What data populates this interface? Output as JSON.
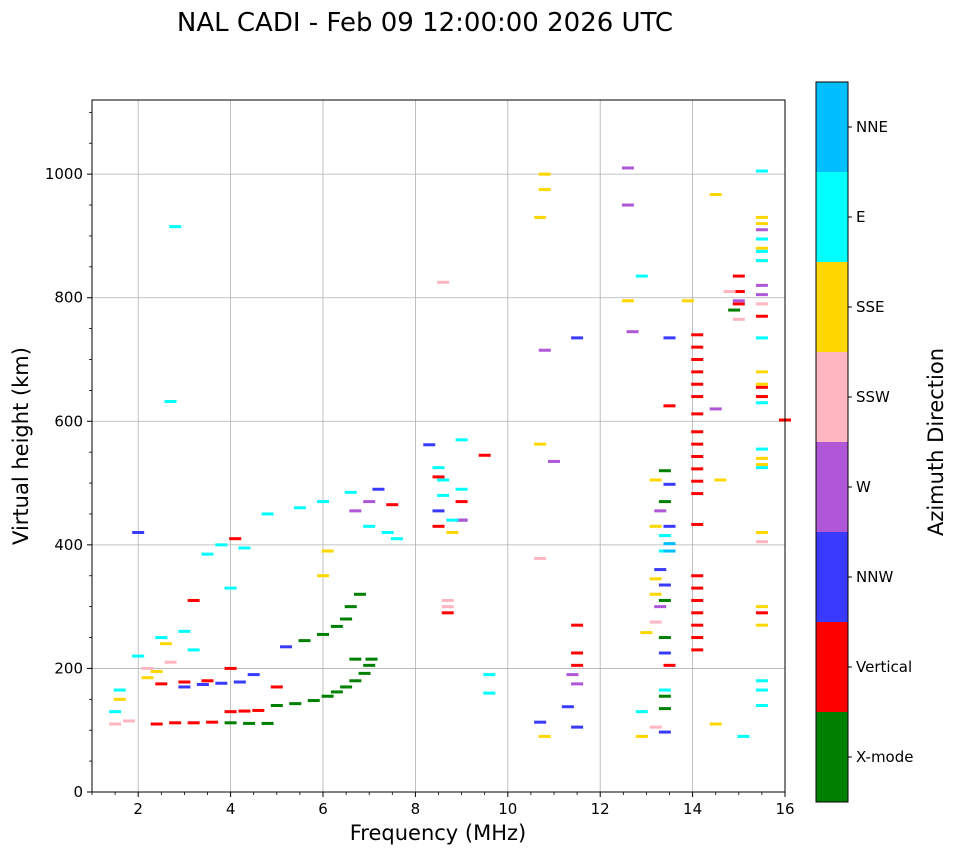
{
  "chart_data": {
    "type": "scatter",
    "title": "NAL CADI - Feb 09 12:00:00 2026 UTC",
    "xlabel": "Frequency (MHz)",
    "ylabel": "Virtual height (km)",
    "xlim": [
      1,
      16
    ],
    "ylim": [
      0,
      1120
    ],
    "x_ticks": [
      2,
      4,
      6,
      8,
      10,
      12,
      14,
      16
    ],
    "y_ticks": [
      0,
      200,
      400,
      600,
      800,
      1000
    ],
    "grid": true,
    "colorbar": {
      "label": "Azimuth Direction",
      "categories": [
        "X-mode",
        "Vertical",
        "NNW",
        "W",
        "SSW",
        "SSE",
        "E",
        "NNE"
      ],
      "colors": [
        "#008000",
        "#ff0000",
        "#3a3aff",
        "#b057d8",
        "#ffb6c1",
        "#ffd700",
        "#00ffff",
        "#00bfff"
      ]
    },
    "series": [
      {
        "name": "X-mode",
        "color": "#008000",
        "points": [
          [
            4.0,
            112
          ],
          [
            4.4,
            111
          ],
          [
            4.8,
            111
          ],
          [
            5.0,
            140
          ],
          [
            5.4,
            143
          ],
          [
            5.8,
            148
          ],
          [
            6.1,
            155
          ],
          [
            6.3,
            162
          ],
          [
            6.5,
            170
          ],
          [
            6.7,
            180
          ],
          [
            6.9,
            192
          ],
          [
            7.0,
            205
          ],
          [
            7.05,
            215
          ],
          [
            6.7,
            215
          ],
          [
            5.6,
            245
          ],
          [
            6.0,
            255
          ],
          [
            6.3,
            268
          ],
          [
            6.5,
            280
          ],
          [
            6.6,
            300
          ],
          [
            6.8,
            320
          ],
          [
            13.4,
            520
          ],
          [
            13.4,
            470
          ],
          [
            13.4,
            310
          ],
          [
            13.4,
            250
          ],
          [
            13.4,
            155
          ],
          [
            13.4,
            135
          ],
          [
            14.9,
            780
          ]
        ]
      },
      {
        "name": "Vertical",
        "color": "#ff0000",
        "points": [
          [
            2.4,
            110
          ],
          [
            2.8,
            112
          ],
          [
            3.2,
            112
          ],
          [
            3.6,
            113
          ],
          [
            4.0,
            130
          ],
          [
            4.3,
            131
          ],
          [
            4.6,
            132
          ],
          [
            5.0,
            170
          ],
          [
            2.5,
            175
          ],
          [
            3.0,
            178
          ],
          [
            3.5,
            180
          ],
          [
            4.0,
            200
          ],
          [
            3.2,
            310
          ],
          [
            4.1,
            410
          ],
          [
            7.5,
            465
          ],
          [
            8.5,
            430
          ],
          [
            8.5,
            510
          ],
          [
            8.7,
            290
          ],
          [
            9.0,
            470
          ],
          [
            9.5,
            545
          ],
          [
            11.5,
            225
          ],
          [
            11.5,
            205
          ],
          [
            11.5,
            270
          ],
          [
            13.5,
            625
          ],
          [
            13.5,
            205
          ],
          [
            14.1,
            740
          ],
          [
            14.1,
            720
          ],
          [
            14.1,
            700
          ],
          [
            14.1,
            680
          ],
          [
            14.1,
            660
          ],
          [
            14.1,
            640
          ],
          [
            14.1,
            612
          ],
          [
            14.1,
            583
          ],
          [
            14.1,
            563
          ],
          [
            14.1,
            543
          ],
          [
            14.1,
            523
          ],
          [
            14.1,
            503
          ],
          [
            14.1,
            483
          ],
          [
            14.1,
            433
          ],
          [
            14.1,
            350
          ],
          [
            14.1,
            330
          ],
          [
            14.1,
            310
          ],
          [
            14.1,
            290
          ],
          [
            14.1,
            270
          ],
          [
            14.1,
            250
          ],
          [
            14.1,
            230
          ],
          [
            15.0,
            835
          ],
          [
            15.0,
            810
          ],
          [
            15.0,
            790
          ],
          [
            15.5,
            770
          ],
          [
            15.5,
            655
          ],
          [
            15.5,
            640
          ],
          [
            15.5,
            290
          ],
          [
            16.0,
            602
          ]
        ]
      },
      {
        "name": "NNW",
        "color": "#3a3aff",
        "points": [
          [
            3.0,
            170
          ],
          [
            3.4,
            174
          ],
          [
            3.8,
            176
          ],
          [
            4.2,
            178
          ],
          [
            4.5,
            190
          ],
          [
            5.2,
            235
          ],
          [
            2.0,
            420
          ],
          [
            7.2,
            490
          ],
          [
            8.3,
            562
          ],
          [
            13.5,
            735
          ],
          [
            11.5,
            735
          ],
          [
            13.5,
            498
          ],
          [
            13.5,
            430
          ],
          [
            13.3,
            360
          ],
          [
            13.4,
            335
          ],
          [
            13.4,
            225
          ],
          [
            13.4,
            97
          ],
          [
            10.7,
            113
          ],
          [
            11.3,
            138
          ],
          [
            11.5,
            105
          ],
          [
            8.5,
            455
          ],
          [
            9.0,
            440
          ]
        ]
      },
      {
        "name": "W",
        "color": "#b057d8",
        "points": [
          [
            6.7,
            455
          ],
          [
            7.0,
            470
          ],
          [
            9.0,
            440
          ],
          [
            10.8,
            715
          ],
          [
            12.7,
            745
          ],
          [
            12.6,
            1010
          ],
          [
            12.6,
            950
          ],
          [
            11.4,
            190
          ],
          [
            11.5,
            175
          ],
          [
            13.3,
            300
          ],
          [
            13.3,
            455
          ],
          [
            14.5,
            620
          ],
          [
            15.0,
            795
          ],
          [
            15.5,
            805
          ],
          [
            15.5,
            820
          ],
          [
            15.5,
            910
          ],
          [
            11.0,
            535
          ]
        ]
      },
      {
        "name": "SSW",
        "color": "#ffb6c1",
        "points": [
          [
            1.5,
            110
          ],
          [
            1.8,
            115
          ],
          [
            2.2,
            200
          ],
          [
            2.7,
            210
          ],
          [
            8.6,
            825
          ],
          [
            8.7,
            310
          ],
          [
            8.7,
            300
          ],
          [
            10.7,
            378
          ],
          [
            13.2,
            105
          ],
          [
            13.2,
            275
          ],
          [
            14.8,
            810
          ],
          [
            15.0,
            765
          ],
          [
            15.5,
            405
          ],
          [
            15.5,
            790
          ]
        ]
      },
      {
        "name": "SSE",
        "color": "#ffd700",
        "points": [
          [
            1.6,
            150
          ],
          [
            2.2,
            185
          ],
          [
            2.6,
            240
          ],
          [
            2.4,
            195
          ],
          [
            6.0,
            350
          ],
          [
            6.1,
            390
          ],
          [
            8.8,
            420
          ],
          [
            10.7,
            930
          ],
          [
            10.8,
            1000
          ],
          [
            10.8,
            975
          ],
          [
            10.8,
            90
          ],
          [
            10.7,
            563
          ],
          [
            12.6,
            795
          ],
          [
            12.9,
            90
          ],
          [
            13.0,
            258
          ],
          [
            13.2,
            505
          ],
          [
            13.2,
            430
          ],
          [
            13.2,
            345
          ],
          [
            13.2,
            320
          ],
          [
            13.9,
            795
          ],
          [
            14.5,
            967
          ],
          [
            14.6,
            505
          ],
          [
            14.5,
            110
          ],
          [
            15.5,
            930
          ],
          [
            15.5,
            920
          ],
          [
            15.5,
            880
          ],
          [
            15.5,
            860
          ],
          [
            15.5,
            540
          ],
          [
            15.5,
            530
          ],
          [
            15.5,
            420
          ],
          [
            15.5,
            300
          ],
          [
            15.5,
            270
          ],
          [
            15.5,
            680
          ],
          [
            15.5,
            660
          ]
        ]
      },
      {
        "name": "E",
        "color": "#00ffff",
        "points": [
          [
            1.5,
            130
          ],
          [
            1.6,
            165
          ],
          [
            2.0,
            220
          ],
          [
            2.5,
            250
          ],
          [
            2.8,
            915
          ],
          [
            2.7,
            632
          ],
          [
            3.0,
            260
          ],
          [
            3.2,
            230
          ],
          [
            3.5,
            385
          ],
          [
            3.8,
            400
          ],
          [
            4.0,
            330
          ],
          [
            4.3,
            395
          ],
          [
            4.8,
            450
          ],
          [
            5.5,
            460
          ],
          [
            6.0,
            470
          ],
          [
            6.6,
            485
          ],
          [
            7.0,
            430
          ],
          [
            7.4,
            420
          ],
          [
            7.6,
            410
          ],
          [
            8.5,
            525
          ],
          [
            8.6,
            505
          ],
          [
            8.6,
            480
          ],
          [
            8.8,
            440
          ],
          [
            9.0,
            490
          ],
          [
            9.0,
            570
          ],
          [
            9.6,
            190
          ],
          [
            9.6,
            160
          ],
          [
            12.9,
            835
          ],
          [
            12.9,
            130
          ],
          [
            13.4,
            390
          ],
          [
            13.4,
            415
          ],
          [
            13.4,
            165
          ],
          [
            15.5,
            1005
          ],
          [
            15.5,
            895
          ],
          [
            15.5,
            875
          ],
          [
            15.5,
            860
          ],
          [
            15.5,
            735
          ],
          [
            15.5,
            630
          ],
          [
            15.5,
            525
          ],
          [
            15.5,
            555
          ],
          [
            15.5,
            180
          ],
          [
            15.5,
            165
          ],
          [
            15.5,
            140
          ],
          [
            15.1,
            90
          ]
        ]
      },
      {
        "name": "NNE",
        "color": "#00bfff",
        "points": [
          [
            13.5,
            402
          ],
          [
            13.5,
            390
          ]
        ]
      }
    ]
  }
}
